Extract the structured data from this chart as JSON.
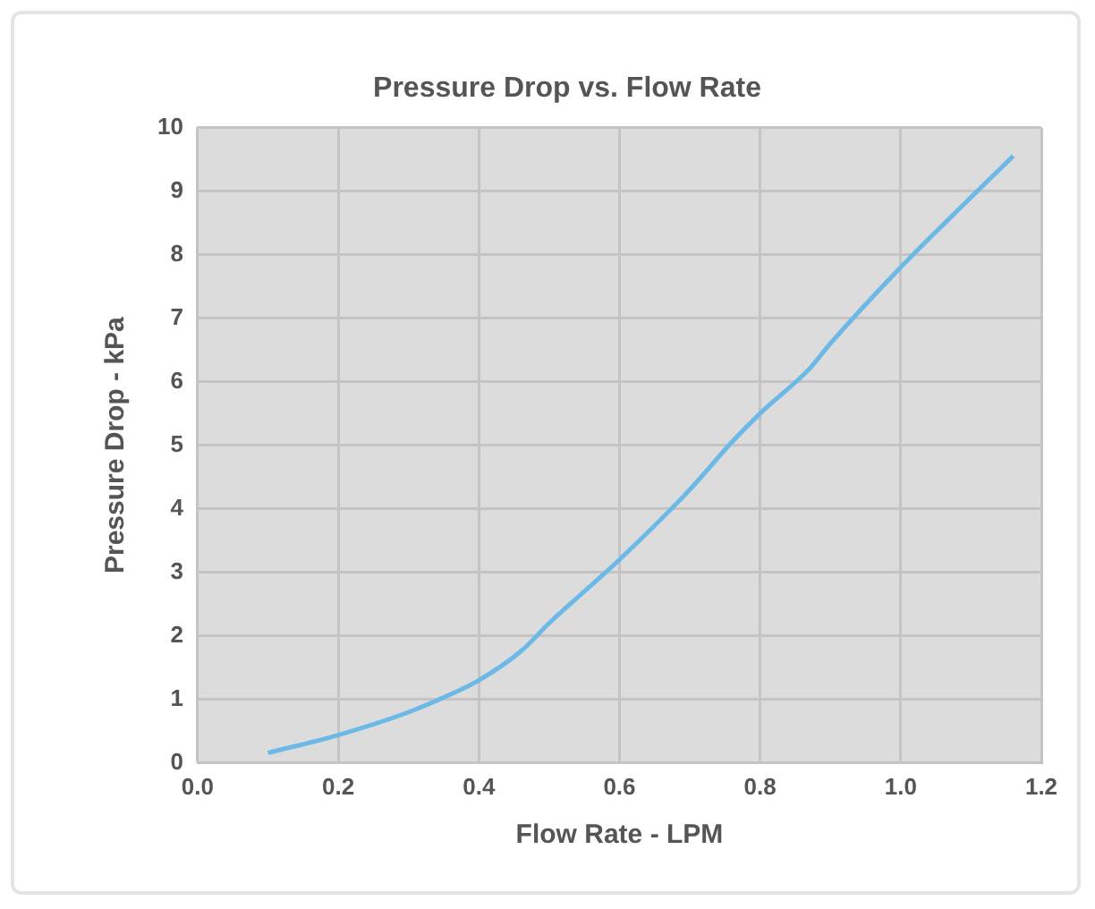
{
  "chart_data": {
    "type": "line",
    "title": "Pressure Drop vs. Flow Rate",
    "xlabel": "Flow Rate - LPM",
    "ylabel": "Pressure Drop - kPa",
    "x": [
      0.1,
      0.2,
      0.3,
      0.36,
      0.4,
      0.46,
      0.5,
      0.55,
      0.6,
      0.7,
      0.76,
      0.8,
      0.87,
      0.9,
      1.0,
      1.1,
      1.16
    ],
    "series": [
      {
        "color": "#6cb8e6",
        "values": [
          0.16,
          0.44,
          0.8,
          1.08,
          1.3,
          1.76,
          2.2,
          2.7,
          3.2,
          4.3,
          5.05,
          5.5,
          6.2,
          6.6,
          7.8,
          8.9,
          9.55
        ]
      }
    ],
    "xlim": [
      0,
      1.2
    ],
    "xticks": [
      {
        "value": 0,
        "label": "0.0"
      },
      0.2,
      0.4,
      0.6,
      0.8,
      {
        "value": 1,
        "label": "1.0"
      },
      {
        "value": 1.2,
        "label": "1.2"
      }
    ],
    "ylim": [
      0,
      10
    ],
    "yticks": [
      0,
      1,
      2,
      3,
      4,
      5,
      6,
      7,
      8,
      9,
      10
    ],
    "grid": true,
    "legend": false,
    "marker": "none",
    "line_style": "solid"
  }
}
